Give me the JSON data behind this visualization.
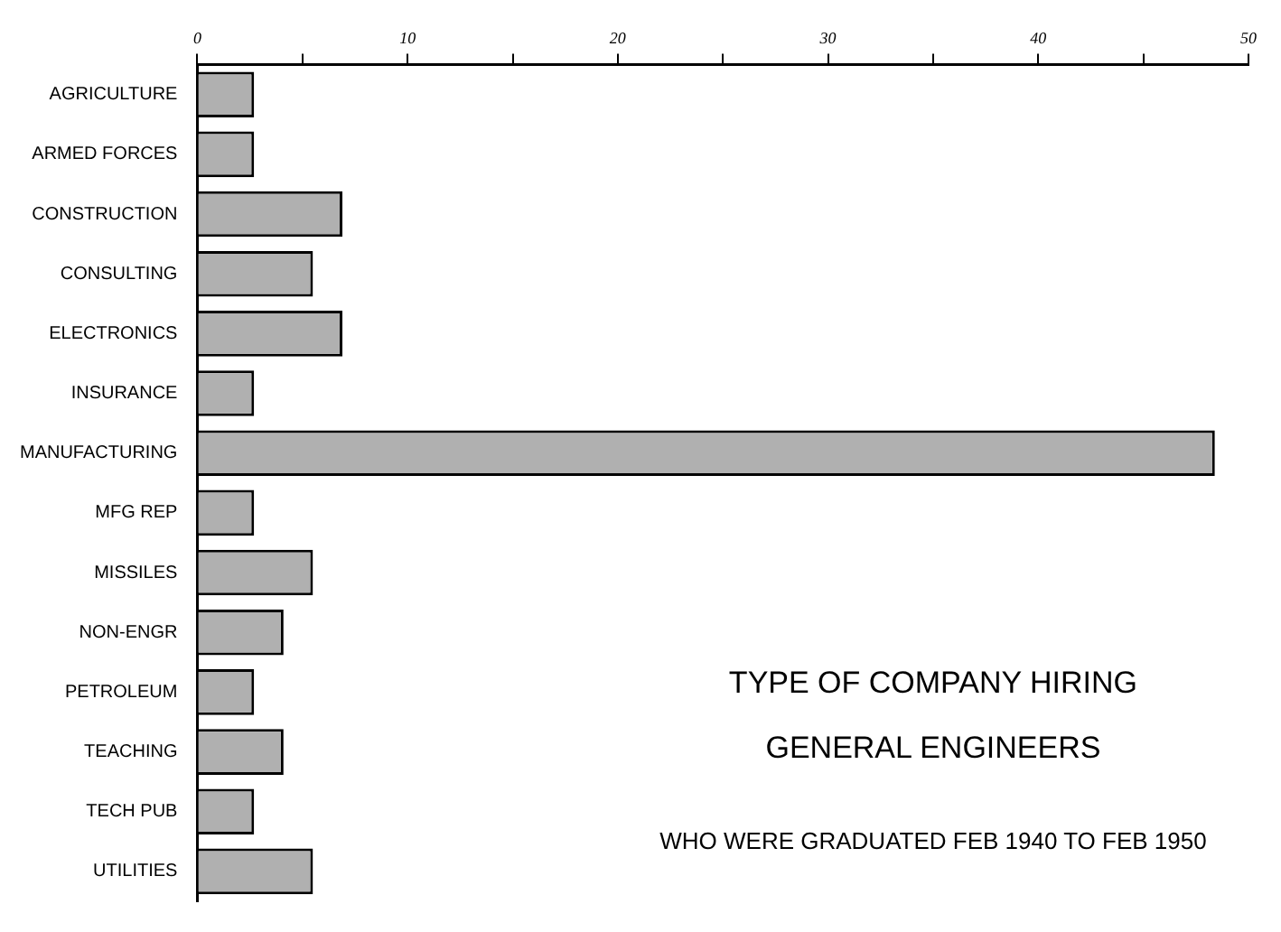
{
  "chart_data": {
    "type": "bar",
    "orientation": "horizontal",
    "title": "TYPE OF COMPANY HIRING GENERAL ENGINEERS",
    "subtitle": "WHO WERE GRADUATED FEB 1940 TO FEB 1950",
    "categories": [
      "AGRICULTURE",
      "ARMED FORCES",
      "CONSTRUCTION",
      "CONSULTING",
      "ELECTRONICS",
      "INSURANCE",
      "MANUFACTURING",
      "MFG REP",
      "MISSILES",
      "NON-ENGR",
      "PETROLEUM",
      "TEACHING",
      "TECH PUB",
      "UTILITIES"
    ],
    "values": [
      2.7,
      2.7,
      6.9,
      5.5,
      6.9,
      2.7,
      48.4,
      2.7,
      5.5,
      4.1,
      2.7,
      4.1,
      2.7,
      5.5
    ],
    "color": "#b0b0b0",
    "xlim": [
      0,
      50
    ],
    "xticks": [
      0,
      {
        "value": 5,
        "label": null
      },
      10,
      {
        "value": 15,
        "label": null
      },
      20,
      {
        "value": 25,
        "label": null
      },
      30,
      {
        "value": 35,
        "label": null
      },
      40,
      {
        "value": 45,
        "label": null
      },
      50
    ],
    "grid": false,
    "legend": false
  }
}
